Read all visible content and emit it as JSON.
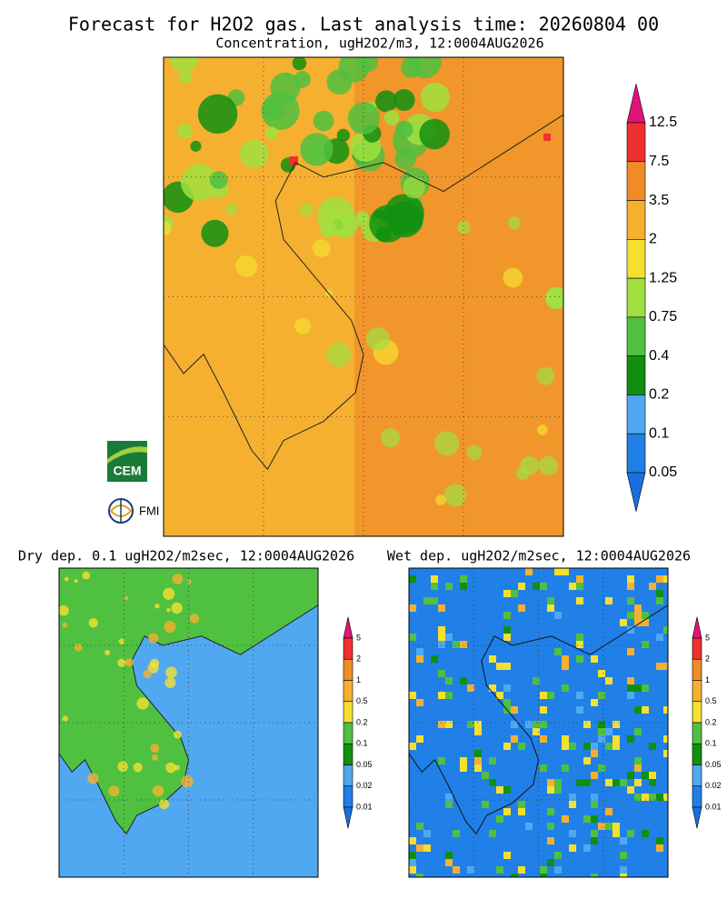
{
  "header": {
    "title": "Forecast for H2O2 gas. Last analysis time: 20260804 00",
    "subtitle": "Concentration, ugH2O2/m3, 12:0004AUG2026"
  },
  "main_map": {
    "colorbar": {
      "labels": [
        12.5,
        7.5,
        3.5,
        2,
        1.25,
        0.75,
        0.4,
        0.2,
        0.1,
        0.05
      ],
      "colors": [
        "#e0147a",
        "#f03030",
        "#f08c28",
        "#f5b030",
        "#f5e030",
        "#a0e040",
        "#50c040",
        "#109010",
        "#50a8f0",
        "#2080e8",
        "#1870e0"
      ]
    }
  },
  "dry_map": {
    "title": "Dry dep. 0.1 ugH2O2/m2sec, 12:0004AUG2026",
    "colorbar": {
      "labels": [
        5,
        2,
        1,
        0.5,
        0.2,
        0.1,
        0.05,
        0.02,
        0.01
      ],
      "colors": [
        "#e0147a",
        "#f03030",
        "#f08c28",
        "#f5b030",
        "#f5e030",
        "#50c040",
        "#109010",
        "#50a8f0",
        "#2080e8",
        "#1870e0"
      ]
    }
  },
  "wet_map": {
    "title": "Wet dep. ugH2O2/m2sec, 12:0004AUG2026",
    "colorbar": {
      "labels": [
        5,
        2,
        1,
        0.5,
        0.2,
        0.1,
        0.05,
        0.02,
        0.01
      ],
      "colors": [
        "#e0147a",
        "#f03030",
        "#f08c28",
        "#f5b030",
        "#f5e030",
        "#50c040",
        "#109010",
        "#50a8f0",
        "#2080e8",
        "#1870e0"
      ]
    }
  },
  "logos": {
    "cem": "CEM",
    "fmi": "FMI"
  }
}
